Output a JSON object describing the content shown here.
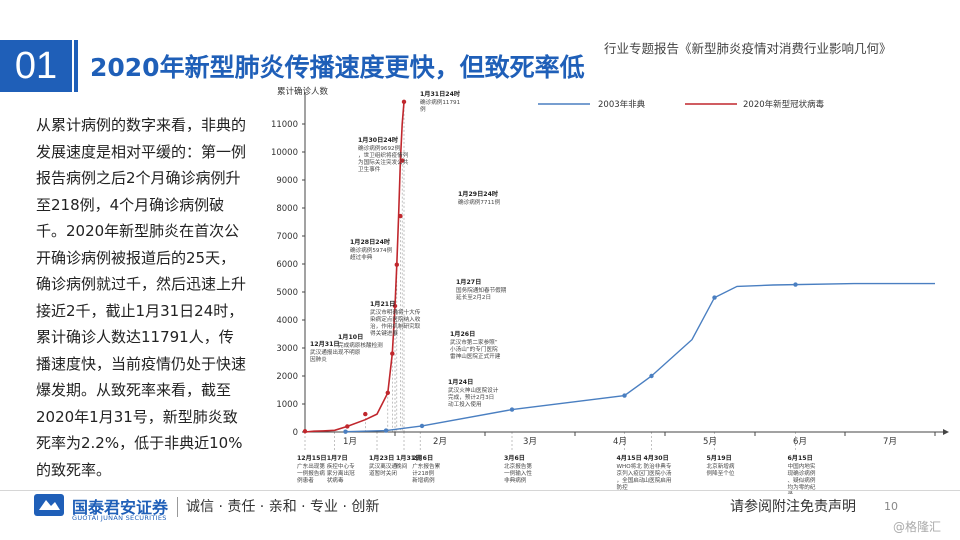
{
  "header": {
    "slide_number": "01",
    "title": "2020年新型肺炎传播速度更快，但致死率低",
    "report_tag": "行业专题报告《新型肺炎疫情对消费行业影响几何》"
  },
  "body_text": "从累计病例的数字来看，非典的发展速度是相对平缓的：第一例报告病例之后2个月确诊病例升至218例，4个月确诊病例破千。2020年新型肺炎在首次公开确诊病例被报道后的25天，确诊病例就过千，然后迅速上升接近2千，截止1月31日24时，累计确诊人数达11791人，传播速度快，当前疫情仍处于快速爆发期。从致死率来看，截至2020年1月31号，新型肺炎致死率为2.2%，低于非典近10%的致死率。",
  "footer": {
    "logo_cn": "国泰君安证券",
    "logo_en": "GUOTAI JUNAN SECURITIES",
    "slogan": "诚信 · 责任 · 亲和 · 专业 · 创新",
    "disclaimer": "请参阅附注免责声明",
    "page": "10",
    "watermark": "@格隆汇"
  },
  "colors": {
    "brand": "#1f5fb8",
    "sars": "#4a7fc1",
    "ncov": "#c0272d"
  },
  "chart_data": {
    "type": "line",
    "ylabel": "累计确诊人数",
    "y_ticks": [
      0,
      1000,
      2000,
      3000,
      4000,
      5000,
      6000,
      7000,
      8000,
      9000,
      10000,
      11000
    ],
    "ylim": [
      0,
      12000
    ],
    "x_ticks": [
      "1月",
      "2月",
      "3月",
      "4月",
      "5月",
      "6月",
      "7月"
    ],
    "xlim": [
      0,
      7
    ],
    "legend_position": "top-right",
    "series": [
      {
        "name": "2003年非典",
        "x": [
          0.45,
          0.9,
          1.3,
          2.3,
          3.55,
          3.85,
          4.3,
          4.55,
          4.8,
          5.2,
          6.1,
          7.0
        ],
        "y": [
          10,
          50,
          218,
          800,
          1300,
          2000,
          3300,
          4800,
          5200,
          5250,
          5300,
          5300
        ]
      },
      {
        "name": "2020年新型冠状病毒",
        "x": [
          0.0,
          0.1,
          0.2,
          0.33,
          0.47,
          0.67,
          0.8,
          0.92,
          0.97,
          1.0,
          1.02,
          1.04,
          1.06,
          1.08,
          1.1
        ],
        "y": [
          0,
          27,
          41,
          62,
          200,
          440,
          640,
          1400,
          2800,
          4500,
          5974,
          7711,
          9692,
          11000,
          11791
        ]
      }
    ],
    "annotations_top": [
      {
        "x": 1.1,
        "y": 11791,
        "date": "1月31日24时",
        "text": "确诊病例11791例"
      },
      {
        "x": 1.08,
        "y": 9692,
        "date": "1月30日24时",
        "text": "确诊病例9692例，世卫组织将疫情列为国际关注突发公共卫生事件"
      },
      {
        "x": 1.06,
        "y": 7711,
        "date": "1月29日24时",
        "text": "确诊病例7711例"
      },
      {
        "x": 1.02,
        "y": 5974,
        "date": "1月28日24时",
        "text": "确诊病例5974例超过非典"
      },
      {
        "x": 1.0,
        "y": 4500,
        "date": "1月27日",
        "text": "国务院通知春节假期延长至2月2日"
      },
      {
        "x": 0.97,
        "y": 2800,
        "date": "1月26日",
        "text": "武汉市第二家参照“小汤山”的专门医院雷神山医院正式开建"
      },
      {
        "x": 0.92,
        "y": 1400,
        "date": "1月24日",
        "text": "武汉火神山医院设计完成，预计2月3日动工投入使用"
      },
      {
        "x": 0.67,
        "y": 640,
        "date": "1月21日",
        "text": "武汉市明确将十大传染病定点医院纳入收治，作用机制研究取得关键进展"
      },
      {
        "x": 0.47,
        "y": 200,
        "date": "1月10日",
        "text": "完成病原核酸检测"
      },
      {
        "x": 0.0,
        "y": 27,
        "date": "12月31日",
        "text": "武汉通报出现不明原因肺炎"
      }
    ],
    "annotations_bottom": [
      {
        "x": 0.0,
        "date": "12月15日",
        "text": "广东出现第一例报告病例患者"
      },
      {
        "x": 0.33,
        "date": "1月7日",
        "text": "疾控中心专家分离出冠状病毒"
      },
      {
        "x": 0.8,
        "date": "1月23日",
        "text": "武汉离汉通道暂时关闭"
      },
      {
        "x": 1.1,
        "date": "1月31日",
        "text": "晚间"
      },
      {
        "x": 1.28,
        "date": "2月6日",
        "text": "广东报告累计218例新增病例"
      },
      {
        "x": 2.3,
        "date": "3月6日",
        "text": "北京报告第一例输入性非典病例"
      },
      {
        "x": 3.55,
        "date": "4月15日",
        "text": "WHO将北京列入疫区，全国启动防控"
      },
      {
        "x": 3.85,
        "date": "4月30日",
        "text": "防治非典专门医院小汤山医院启用"
      },
      {
        "x": 4.55,
        "date": "5月19日",
        "text": "北京新增病例降至个位"
      },
      {
        "x": 5.45,
        "date": "6月15日",
        "text": "中国内地实现确诊病例、疑似病例均为零的纪录"
      }
    ]
  }
}
